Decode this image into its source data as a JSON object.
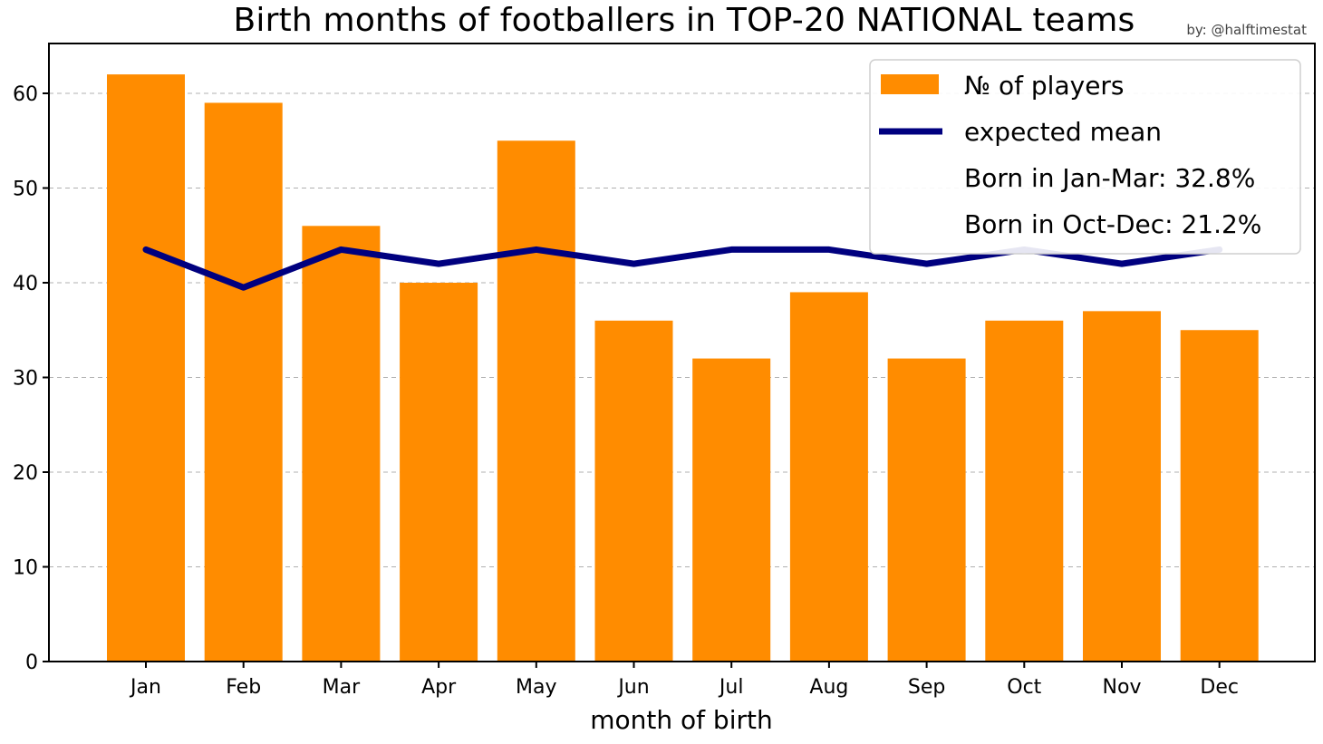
{
  "credit": "by: @halftimestat",
  "chart_data": {
    "type": "bar",
    "title": "Birth months of footballers in TOP-20 NATIONAL teams",
    "xlabel": "month of birth",
    "ylabel": "",
    "categories": [
      "Jan",
      "Feb",
      "Mar",
      "Apr",
      "May",
      "Jun",
      "Jul",
      "Aug",
      "Sep",
      "Oct",
      "Nov",
      "Dec"
    ],
    "series": [
      {
        "name": "№ of players",
        "kind": "bar",
        "color": "#ff8c00",
        "values": [
          62,
          59,
          46,
          40,
          55,
          36,
          32,
          39,
          32,
          36,
          37,
          35
        ]
      },
      {
        "name": "expected mean",
        "kind": "line",
        "color": "#00007f",
        "values": [
          43.5,
          39.5,
          43.5,
          42,
          43.5,
          42,
          43.5,
          43.5,
          42,
          43.5,
          42,
          43.5
        ]
      }
    ],
    "annotations": [
      "Born in Jan-Mar: 32.8%",
      "Born in Oct-Dec: 21.2%"
    ],
    "yticks": [
      0,
      10,
      20,
      30,
      40,
      50,
      60
    ],
    "ylim": [
      0,
      65
    ],
    "grid": true,
    "legend_position": "top-right"
  }
}
